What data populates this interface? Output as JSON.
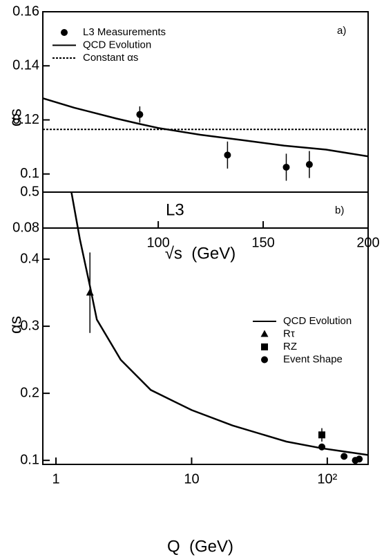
{
  "chart_data": [
    {
      "type": "line",
      "xlabel": "√s  (GeV)",
      "ylabel": "αs",
      "annotation": "a)",
      "xlim": [
        45,
        200
      ],
      "xticks": [
        100,
        150,
        200
      ],
      "ylim": [
        0.08,
        0.16
      ],
      "yticks": [
        0.08,
        0.1,
        0.12,
        0.14,
        0.16
      ],
      "legend": "upper left",
      "series": [
        {
          "name": "L3 Measurements",
          "color": "#000000",
          "marker": "circle",
          "x": [
            91.2,
            133,
            161,
            172
          ],
          "values": [
            0.122,
            0.107,
            0.1025,
            0.1035
          ],
          "errors": [
            0.003,
            0.005,
            0.005,
            0.005
          ]
        },
        {
          "name": "QCD Evolution",
          "color": "#000000",
          "line": "solid",
          "x": [
            45,
            60,
            80,
            91.2,
            100,
            120,
            140,
            160,
            180,
            200
          ],
          "values": [
            0.128,
            0.1245,
            0.1205,
            0.1185,
            0.117,
            0.1145,
            0.1125,
            0.1105,
            0.109,
            0.1065
          ]
        },
        {
          "name": "Constant αs",
          "color": "#000000",
          "line": "dotted",
          "x": [
            45,
            200
          ],
          "values": [
            0.1165,
            0.1165
          ]
        }
      ]
    },
    {
      "type": "line",
      "xlabel": "Q  (GeV)",
      "ylabel": "αs",
      "annotation": "b)",
      "title": "L3",
      "xscale": "log",
      "xlim": [
        0.8,
        200
      ],
      "xticks": [
        1,
        10,
        {
          "value": 100,
          "label": "10²"
        }
      ],
      "ylim": [
        0.094,
        0.5
      ],
      "yticks": [
        0.1,
        0.2,
        0.3,
        0.4,
        0.5
      ],
      "legend": "center right",
      "series": [
        {
          "name": "QCD Evolution",
          "color": "#000000",
          "line": "solid",
          "x": [
            1.3,
            1.5,
            1.78,
            2,
            3,
            5,
            10,
            20,
            50,
            91.2,
            200
          ],
          "values": [
            0.5,
            0.43,
            0.36,
            0.31,
            0.25,
            0.205,
            0.175,
            0.152,
            0.128,
            0.118,
            0.108
          ]
        },
        {
          "name": "Rτ",
          "color": "#000000",
          "marker": "triangle",
          "x": [
            1.78
          ],
          "values": [
            0.35
          ],
          "errors": [
            0.06
          ]
        },
        {
          "name": "RZ",
          "color": "#000000",
          "marker": "square",
          "x": [
            91.2
          ],
          "values": [
            0.138
          ],
          "errors": [
            0.01
          ]
        },
        {
          "name": "Event Shape",
          "color": "#000000",
          "marker": "circle",
          "x": [
            91.2,
            133,
            161,
            172
          ],
          "values": [
            0.12,
            0.106,
            0.1,
            0.102
          ],
          "errors": [
            0.002,
            0.002,
            0.002,
            0.002
          ]
        }
      ]
    }
  ]
}
